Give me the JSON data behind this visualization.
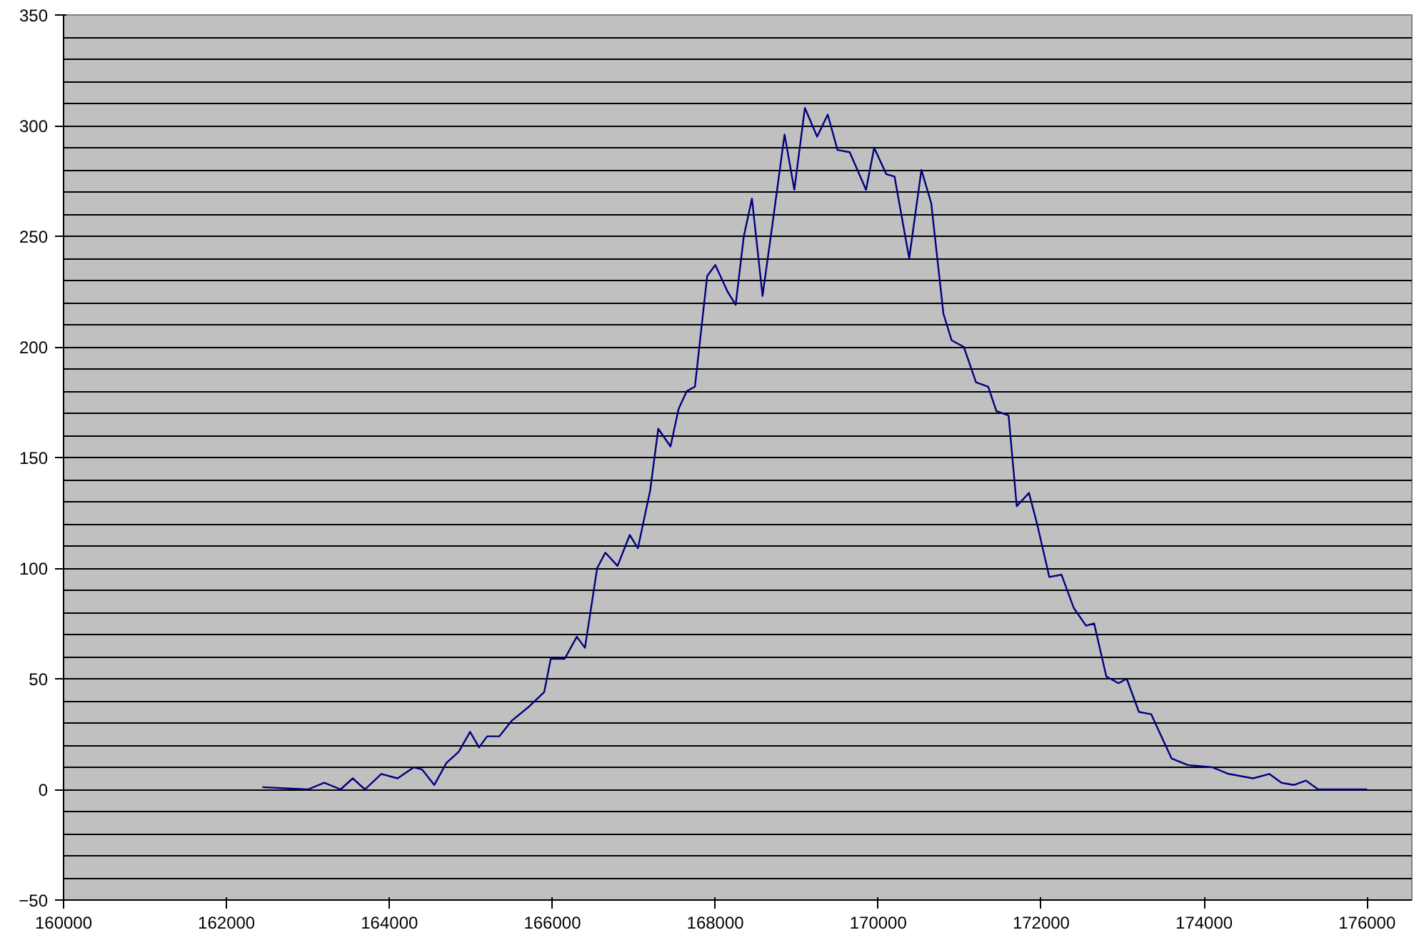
{
  "chart_data": {
    "type": "line",
    "grid": "y",
    "xlim": [
      160000,
      176550
    ],
    "ylim": [
      -50,
      350
    ],
    "xticks": [
      160000,
      162000,
      164000,
      166000,
      168000,
      170000,
      172000,
      174000,
      176000
    ],
    "yticks": [
      -50,
      0,
      50,
      100,
      150,
      200,
      250,
      300,
      350
    ],
    "series": [
      {
        "color": "#000080",
        "x": [
          162440,
          163000,
          163200,
          163400,
          163550,
          163700,
          163900,
          164100,
          164300,
          164400,
          164550,
          164700,
          164850,
          164990,
          165100,
          165200,
          165350,
          165500,
          165700,
          165900,
          165980,
          166150,
          166300,
          166400,
          166550,
          166650,
          166800,
          166950,
          167050,
          167200,
          167300,
          167450,
          167550,
          167650,
          167750,
          167900,
          168000,
          168150,
          168250,
          168350,
          168450,
          168580,
          168700,
          168850,
          168970,
          169100,
          169250,
          169380,
          169500,
          169650,
          169850,
          169950,
          170100,
          170200,
          170380,
          170530,
          170650,
          170800,
          170900,
          171050,
          171200,
          171350,
          171450,
          171600,
          171700,
          171850,
          171950,
          172100,
          172250,
          172400,
          172550,
          172650,
          172800,
          172950,
          173050,
          173200,
          173350,
          173500,
          173600,
          173800,
          174100,
          174300,
          174600,
          174800,
          174950,
          175100,
          175250,
          175400,
          176000
        ],
        "values": [
          1,
          0,
          3,
          0,
          5,
          0,
          7,
          5,
          10,
          9,
          2,
          12,
          17,
          26,
          19,
          24,
          24,
          31,
          37,
          44,
          59,
          59,
          69,
          64,
          100,
          107,
          101,
          115,
          109,
          135,
          163,
          155,
          172,
          180,
          182,
          232,
          237,
          225,
          219,
          250,
          267,
          223,
          255,
          296,
          271,
          308,
          295,
          305,
          289,
          288,
          271,
          290,
          278,
          277,
          240,
          280,
          265,
          215,
          203,
          200,
          184,
          182,
          171,
          169,
          128,
          134,
          120,
          96,
          97,
          82,
          74,
          75,
          51,
          48,
          50,
          35,
          34,
          22,
          14,
          11,
          10,
          7,
          5,
          7,
          3,
          2,
          4,
          0,
          0
        ]
      }
    ]
  }
}
